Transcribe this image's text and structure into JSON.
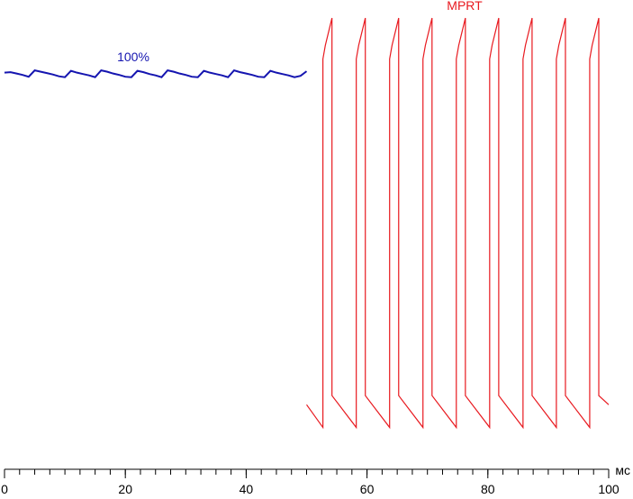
{
  "chart_data": {
    "type": "line",
    "x_label": "мс",
    "xlim": [
      0,
      100
    ],
    "xticks": [
      0,
      20,
      40,
      60,
      80,
      100
    ],
    "xminorticks": [
      0,
      2.5,
      5,
      7.5,
      10,
      12.5,
      15,
      17.5,
      20,
      22.5,
      25,
      27.5,
      30,
      32.5,
      35,
      37.5,
      40,
      42.5,
      45,
      47.5,
      50,
      52.5,
      55,
      57.5,
      60,
      62.5,
      65,
      67.5,
      70,
      72.5,
      75,
      77.5,
      80,
      82.5,
      85,
      87.5,
      90,
      92.5,
      95,
      97.5,
      100
    ],
    "ylim": [
      0,
      100
    ],
    "series": [
      {
        "name": "100%",
        "color": "#1515b0",
        "x": [
          0,
          1,
          2,
          3,
          4,
          5,
          6,
          7,
          8,
          9,
          10,
          11,
          12,
          13,
          14,
          15,
          16,
          17,
          18,
          19,
          20,
          21,
          22,
          23,
          24,
          25,
          26,
          27,
          28,
          29,
          30,
          31,
          32,
          33,
          34,
          35,
          36,
          37,
          38,
          39,
          40,
          41,
          42,
          43,
          44,
          45,
          46,
          47,
          48,
          49,
          50
        ],
        "values": [
          87.0,
          87.1,
          86.8,
          86.5,
          86.1,
          87.5,
          87.2,
          86.9,
          86.6,
          86.2,
          86.0,
          87.4,
          87.0,
          86.7,
          86.4,
          86.0,
          87.5,
          87.2,
          86.8,
          86.5,
          86.1,
          86.0,
          87.4,
          87.1,
          86.7,
          86.4,
          86.0,
          87.5,
          87.2,
          86.8,
          86.5,
          86.1,
          86.0,
          87.4,
          87.0,
          86.7,
          86.4,
          86.0,
          87.5,
          87.1,
          86.8,
          86.5,
          86.1,
          86.0,
          87.4,
          87.0,
          86.7,
          86.4,
          86.0,
          86.3,
          87.3
        ]
      },
      {
        "name": "MPRT",
        "color": "#e8191f",
        "x": [
          50,
          52.7,
          52.7,
          53.1,
          54.2,
          54.2,
          58.22,
          58.22,
          58.62,
          59.72,
          59.72,
          63.74,
          63.74,
          64.14,
          65.24,
          65.24,
          69.26,
          69.26,
          69.66,
          70.76,
          70.76,
          74.78,
          74.78,
          75.18,
          76.28,
          76.28,
          80.3,
          80.3,
          80.7,
          81.8,
          81.8,
          85.82,
          85.82,
          86.22,
          87.32,
          87.32,
          91.34,
          91.34,
          91.74,
          92.84,
          92.84,
          96.86,
          96.86,
          97.26,
          98.36,
          98.36,
          100
        ],
        "values": [
          14,
          9,
          90,
          93,
          99,
          16,
          9,
          90,
          93,
          99,
          16,
          9,
          90,
          93,
          99,
          16,
          9,
          90,
          93,
          99,
          16,
          9,
          90,
          93,
          99,
          16,
          9,
          90,
          93,
          99,
          16,
          9,
          90,
          93,
          99,
          16,
          9,
          90,
          93,
          99,
          16,
          9,
          90,
          93,
          99,
          16,
          14
        ]
      }
    ]
  }
}
